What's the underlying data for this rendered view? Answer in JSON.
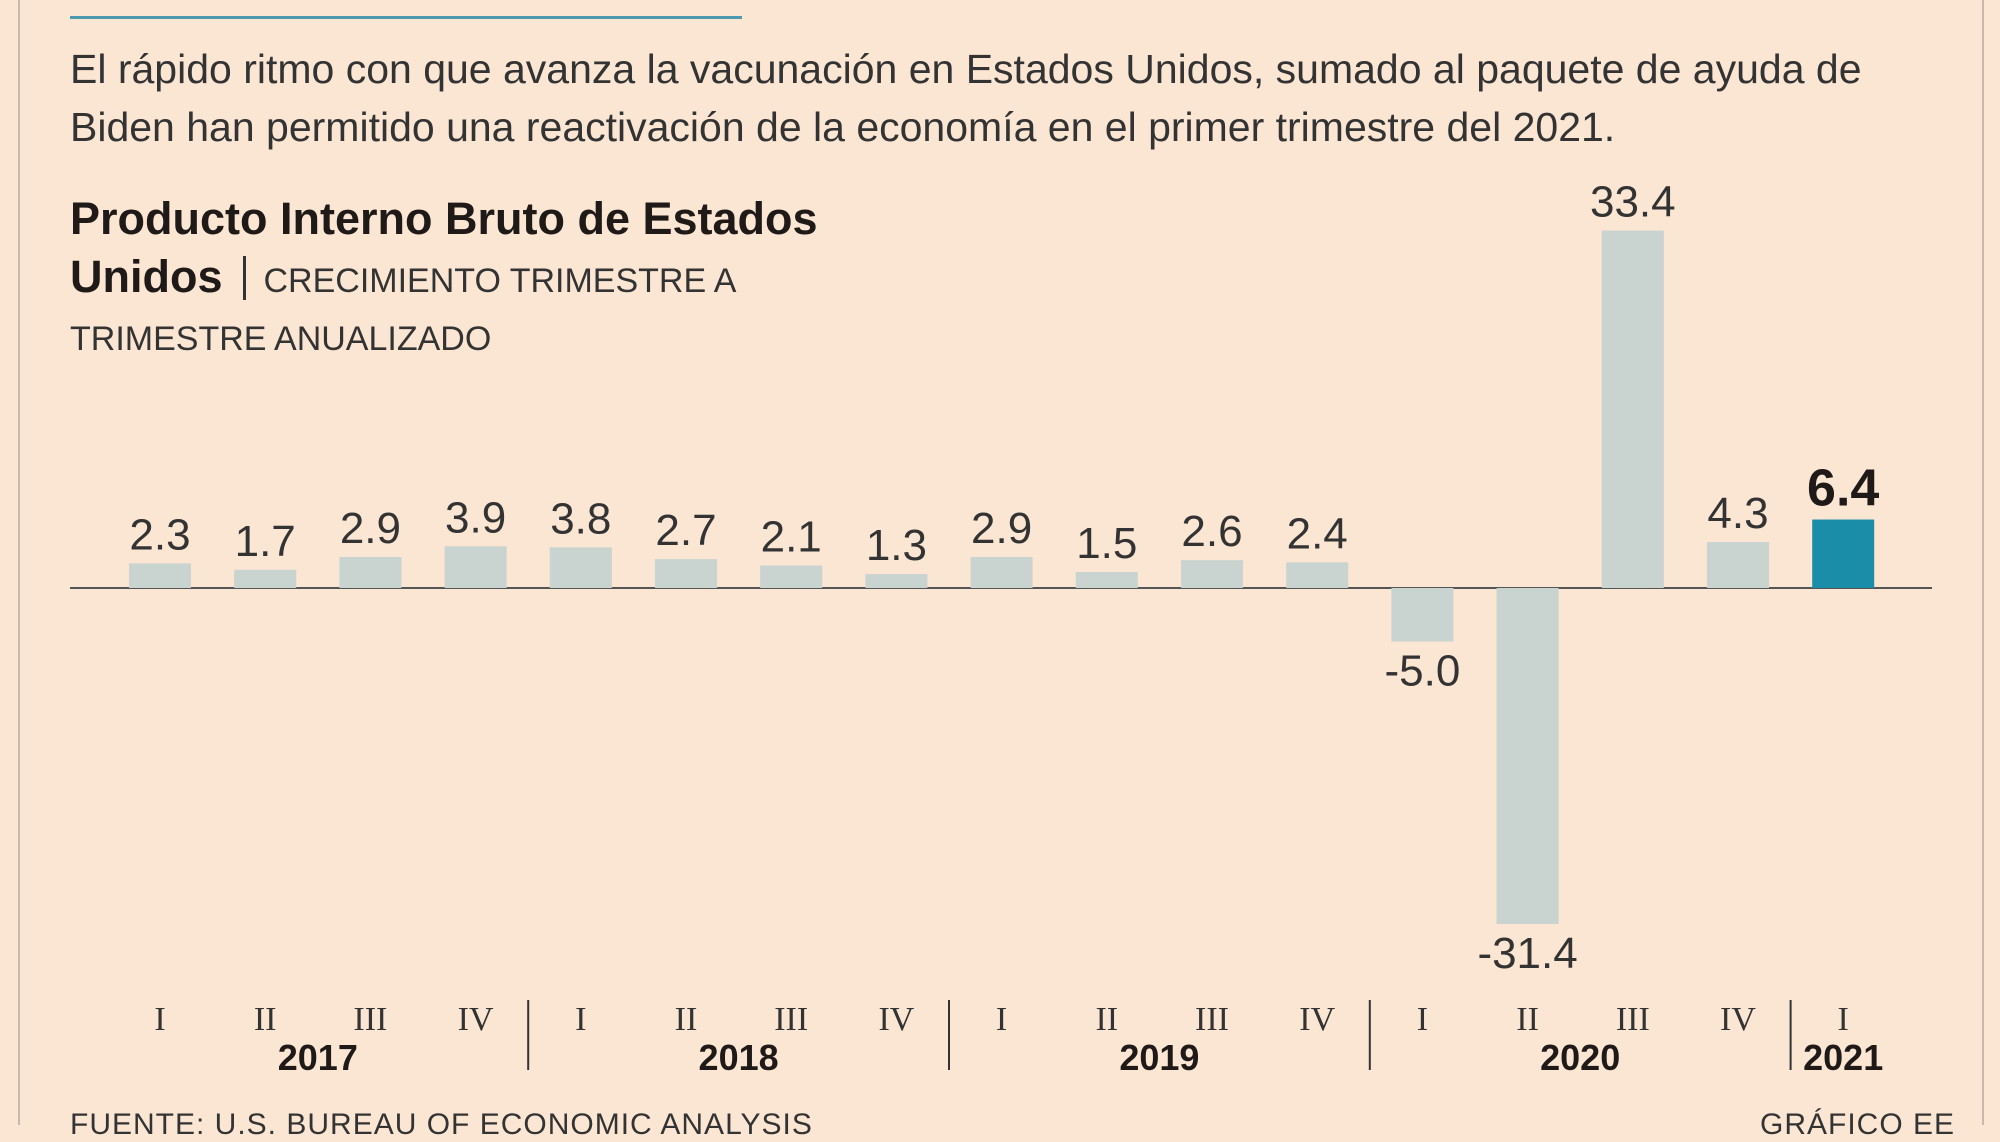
{
  "intro_text": "El rápido ritmo con que avanza la vacunación en Estados Unidos, sumado al paquete de ayu­da de Biden han permitido una reactivación de la economía en el primer trimestre del 2021.",
  "source": "FUENTE: U.S. BUREAU OF ECONOMIC ANALYSIS",
  "credit": "GRÁFICO EE",
  "colors": {
    "bar": "#c9d3cf",
    "highlight": "#1a8ea9",
    "background": "#fbe6d4",
    "axis": "#555555",
    "rule": "#4a9ab0"
  },
  "chart_data": {
    "type": "bar",
    "title": "Producto Interno Bruto de Estados Unidos",
    "subtitle": "CRECIMIENTO TRIMESTRE A TRIMESTRE ANUALIZADO",
    "categories": [
      "I",
      "II",
      "III",
      "IV",
      "I",
      "II",
      "III",
      "IV",
      "I",
      "II",
      "III",
      "IV",
      "I",
      "II",
      "III",
      "IV",
      "I"
    ],
    "years": [
      {
        "label": "2017",
        "quarters": 4
      },
      {
        "label": "2018",
        "quarters": 4
      },
      {
        "label": "2019",
        "quarters": 4
      },
      {
        "label": "2020",
        "quarters": 4
      },
      {
        "label": "2021",
        "quarters": 1
      }
    ],
    "values": [
      2.3,
      1.7,
      2.9,
      3.9,
      3.8,
      2.7,
      2.1,
      1.3,
      2.9,
      1.5,
      2.6,
      2.4,
      -5.0,
      -31.4,
      33.4,
      4.3,
      6.4
    ],
    "value_labels": [
      "2.3",
      "1.7",
      "2.9",
      "3.9",
      "3.8",
      "2.7",
      "2.1",
      "1.3",
      "2.9",
      "1.5",
      "2.6",
      "2.4",
      "-5.0",
      "-31.4",
      "33.4",
      "4.3",
      "6.4"
    ],
    "highlight_index": 16,
    "grid": false,
    "legend": "none"
  }
}
